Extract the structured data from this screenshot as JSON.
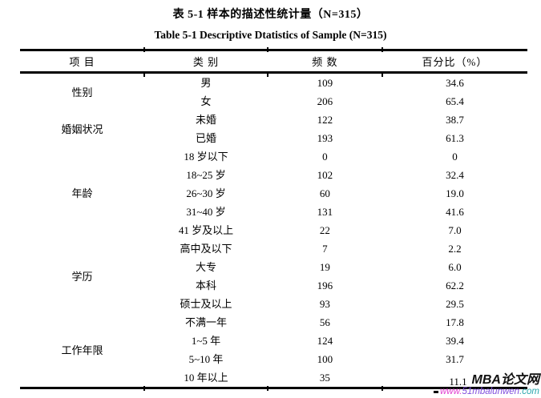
{
  "title": {
    "zh": "表 5-1 样本的描述性统计量（N=315）",
    "en": "Table 5-1 Descriptive Dtatistics of Sample (N=315)"
  },
  "table": {
    "headers": [
      "项 目",
      "类 别",
      "频 数",
      "百分比（%）"
    ],
    "groups": [
      {
        "label": "性别",
        "rows": [
          [
            "男",
            "109",
            "34.6"
          ],
          [
            "女",
            "206",
            "65.4"
          ]
        ]
      },
      {
        "label": "婚姻状况",
        "rows": [
          [
            "未婚",
            "122",
            "38.7"
          ],
          [
            "已婚",
            "193",
            "61.3"
          ]
        ]
      },
      {
        "label": "年龄",
        "rows": [
          [
            "18 岁以下",
            "0",
            "0"
          ],
          [
            "18~25 岁",
            "102",
            "32.4"
          ],
          [
            "26~30 岁",
            "60",
            "19.0"
          ],
          [
            "31~40 岁",
            "131",
            "41.6"
          ],
          [
            "41 岁及以上",
            "22",
            "7.0"
          ]
        ]
      },
      {
        "label": "学历",
        "rows": [
          [
            "高中及以下",
            "7",
            "2.2"
          ],
          [
            "大专",
            "19",
            "6.0"
          ],
          [
            "本科",
            "196",
            "62.2"
          ],
          [
            "硕士及以上",
            "93",
            "29.5"
          ]
        ]
      },
      {
        "label": "工作年限",
        "rows": [
          [
            "不满一年",
            "56",
            "17.8"
          ],
          [
            "1~5 年",
            "124",
            "39.4"
          ],
          [
            "5~10 年",
            "100",
            "31.7"
          ],
          [
            "10 年以上",
            "35",
            "11.1"
          ]
        ]
      }
    ]
  },
  "watermark": {
    "brand": "MBA论文网",
    "url_parts": [
      {
        "text": "www.",
        "color": "#e03fd0"
      },
      {
        "text": "51mbalunwen",
        "color": "#8050dd"
      },
      {
        "text": ".com",
        "color": "#2aa8ad"
      }
    ]
  }
}
